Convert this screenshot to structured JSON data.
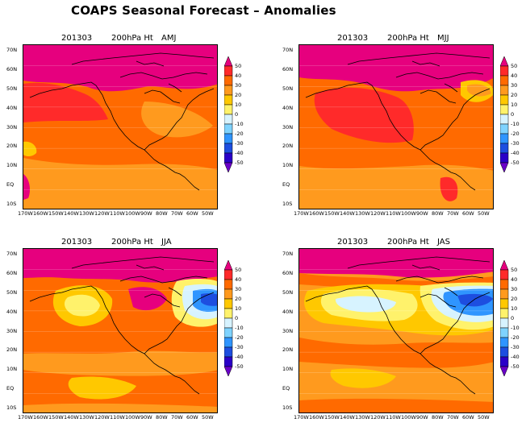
{
  "header": {
    "title": "COAPS Seasonal Forecast – Anomalies"
  },
  "colorbar": {
    "levels": [
      "50",
      "40",
      "30",
      "20",
      "10",
      "0",
      "-10",
      "-20",
      "-30",
      "-40",
      "-50"
    ],
    "colors": [
      "#e6007e",
      "#ff2a2a",
      "#ff6a00",
      "#ff9a1e",
      "#ffc800",
      "#fff26b",
      "#d7f3ff",
      "#7fd3ff",
      "#2f95ff",
      "#1d4ee0",
      "#2a00c8",
      "#6a00c8"
    ]
  },
  "axes": {
    "lat_labels": [
      "70N",
      "60N",
      "50N",
      "40N",
      "30N",
      "20N",
      "10N",
      "EQ",
      "10S"
    ],
    "lon_labels": [
      "170W",
      "160W",
      "150W",
      "140W",
      "130W",
      "120W",
      "110W",
      "100W",
      "90W",
      "80W",
      "70W",
      "60W",
      "50W"
    ]
  },
  "panels": [
    {
      "date": "201303",
      "variable": "200hPa Ht",
      "season": "AMJ"
    },
    {
      "date": "201303",
      "variable": "200hPa Ht",
      "season": "MJJ"
    },
    {
      "date": "201303",
      "variable": "200hPa Ht",
      "season": "JJA"
    },
    {
      "date": "201303",
      "variable": "200hPa Ht",
      "season": "JAS"
    }
  ],
  "colors": {
    "magenta": "#e6007e",
    "red": "#ff2a2a",
    "dark_orange": "#ff6a00",
    "orange": "#ff9a1e",
    "yellow": "#ffc800",
    "light_yellow": "#fff26b",
    "light_blue": "#d7f3ff",
    "blue": "#2f95ff",
    "dark_blue": "#1d4ee0"
  }
}
